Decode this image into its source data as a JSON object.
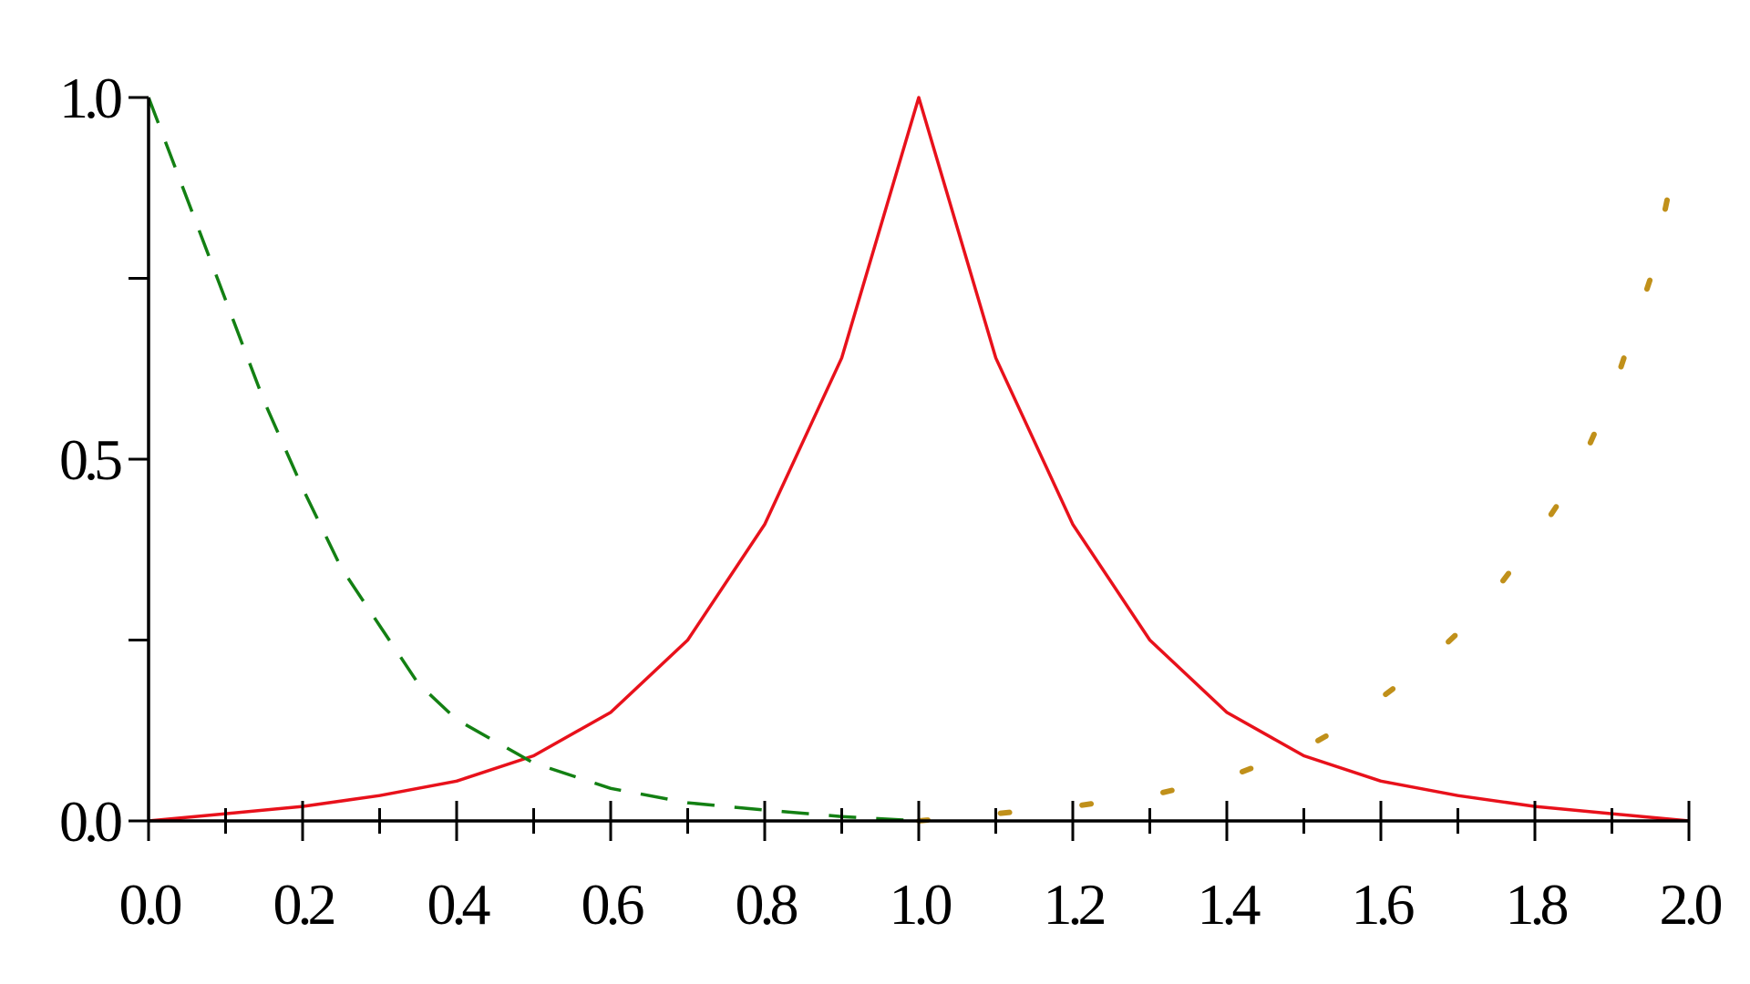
{
  "chart_data": {
    "type": "line",
    "title": "",
    "xlabel": "",
    "ylabel": "",
    "xlim": [
      0,
      2
    ],
    "ylim": [
      0,
      1
    ],
    "grid": false,
    "x_ticks": [
      "0.0",
      "0.2",
      "0.4",
      "0.6",
      "0.8",
      "1.0",
      "1.2",
      "1.4",
      "1.6",
      "1.8",
      "2.0"
    ],
    "y_ticks": [
      "0.0",
      "0.5",
      "1.0"
    ],
    "series": [
      {
        "style": "solid",
        "color": "#e8111b",
        "x": [
          0,
          0.1,
          0.2,
          0.3,
          0.4,
          0.5,
          0.6,
          0.7,
          0.8,
          0.9,
          1.0,
          1.1,
          1.2,
          1.3,
          1.4,
          1.5,
          1.6,
          1.7,
          1.8,
          1.9,
          2.0
        ],
        "y": [
          0,
          0.01,
          0.02,
          0.035,
          0.055,
          0.09,
          0.15,
          0.25,
          0.41,
          0.64,
          1.0,
          0.64,
          0.41,
          0.25,
          0.15,
          0.09,
          0.055,
          0.035,
          0.02,
          0.01,
          0
        ]
      },
      {
        "style": "dashed",
        "color": "#138013",
        "x": [
          0,
          0.05,
          0.1,
          0.15,
          0.2,
          0.25,
          0.3,
          0.35,
          0.4,
          0.45,
          0.5,
          0.6,
          0.7,
          0.8,
          0.9,
          1.0
        ],
        "y": [
          1.0,
          0.86,
          0.72,
          0.58,
          0.46,
          0.35,
          0.27,
          0.19,
          0.14,
          0.11,
          0.08,
          0.045,
          0.025,
          0.015,
          0.006,
          0
        ]
      },
      {
        "style": "dotted",
        "color": "#c0901a",
        "x": [
          1.0,
          1.1,
          1.2,
          1.3,
          1.4,
          1.5,
          1.55,
          1.6,
          1.65,
          1.7,
          1.75,
          1.8,
          1.85,
          1.9,
          1.95,
          1.98
        ],
        "y": [
          0,
          0.01,
          0.02,
          0.035,
          0.06,
          0.1,
          0.13,
          0.17,
          0.21,
          0.26,
          0.32,
          0.39,
          0.47,
          0.59,
          0.75,
          0.9
        ]
      }
    ]
  }
}
